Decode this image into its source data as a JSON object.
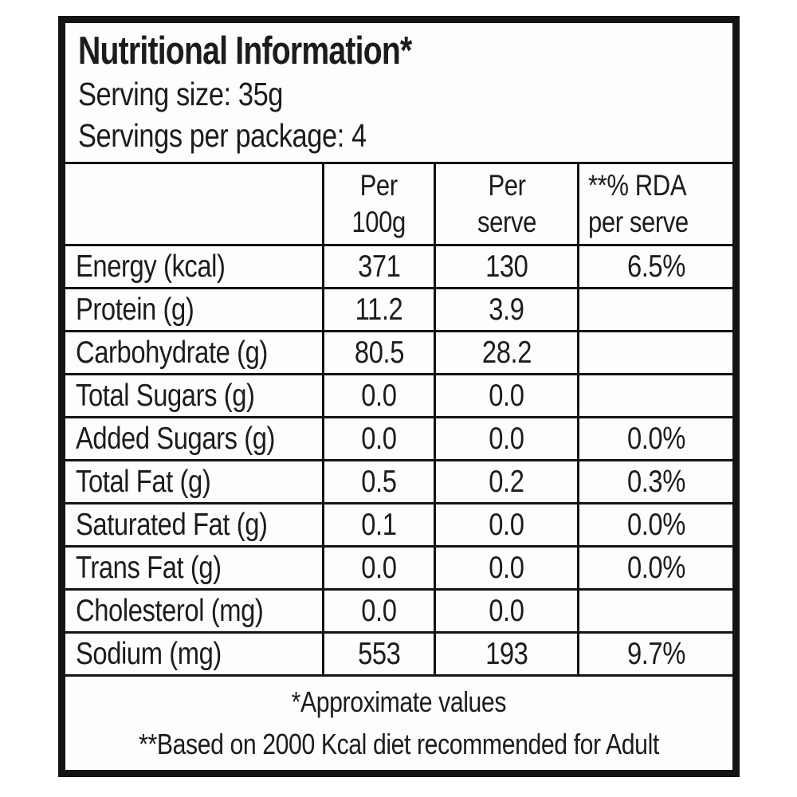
{
  "header": {
    "title": "Nutritional Information*",
    "serving_size": "Serving size: 35g",
    "servings_per_package": "Servings per package: 4"
  },
  "table": {
    "columns": [
      "",
      "Per\n100g",
      "Per\nserve",
      "**% RDA\nper serve"
    ],
    "rows": [
      {
        "label": "Energy (kcal)",
        "per_100g": "371",
        "per_serve": "130",
        "rda": "6.5%"
      },
      {
        "label": "Protein (g)",
        "per_100g": "11.2",
        "per_serve": "3.9",
        "rda": ""
      },
      {
        "label": "Carbohydrate (g)",
        "per_100g": "80.5",
        "per_serve": "28.2",
        "rda": ""
      },
      {
        "label": "Total Sugars (g)",
        "per_100g": "0.0",
        "per_serve": "0.0",
        "rda": ""
      },
      {
        "label": "Added Sugars (g)",
        "per_100g": "0.0",
        "per_serve": "0.0",
        "rda": "0.0%"
      },
      {
        "label": "Total Fat (g)",
        "per_100g": "0.5",
        "per_serve": "0.2",
        "rda": "0.3%"
      },
      {
        "label": "Saturated Fat (g)",
        "per_100g": "0.1",
        "per_serve": "0.0",
        "rda": "0.0%"
      },
      {
        "label": "Trans Fat (g)",
        "per_100g": "0.0",
        "per_serve": "0.0",
        "rda": "0.0%"
      },
      {
        "label": "Cholesterol (mg)",
        "per_100g": "0.0",
        "per_serve": "0.0",
        "rda": ""
      },
      {
        "label": "Sodium (mg)",
        "per_100g": "553",
        "per_serve": "193",
        "rda": "9.7%"
      }
    ]
  },
  "footnotes": {
    "line1": "*Approximate values",
    "line2": "**Based on 2000 Kcal diet recommended for Adult"
  },
  "colors": {
    "text": "#1c1c1c",
    "border": "#141414",
    "label_background": "#fdfdfd",
    "page_background": "#ffffff"
  }
}
